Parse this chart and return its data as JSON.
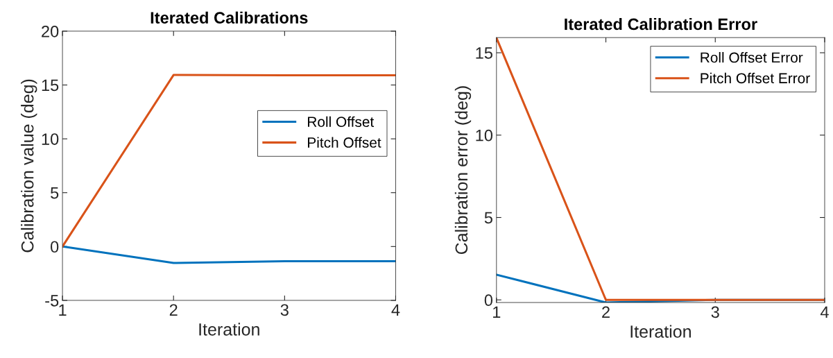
{
  "chart_data": [
    {
      "type": "line",
      "title": "Iterated Calibrations",
      "xlabel": "Iteration",
      "ylabel": "Calibration value (deg)",
      "x": [
        1,
        2,
        3,
        4
      ],
      "xlim": [
        1,
        4
      ],
      "xticks": [
        1,
        2,
        3,
        4
      ],
      "ylim": [
        -5,
        20
      ],
      "yticks": [
        -5,
        0,
        5,
        10,
        15,
        20
      ],
      "legend": "right",
      "grid": false,
      "series": [
        {
          "name": "Roll Offset",
          "color": "#0072bd",
          "values": [
            0,
            -1.53,
            -1.36,
            -1.36
          ]
        },
        {
          "name": "Pitch Offset",
          "color": "#d95319",
          "values": [
            0,
            15.93,
            15.9,
            15.9
          ]
        }
      ]
    },
    {
      "type": "line",
      "title": "Iterated Calibration Error",
      "xlabel": "Iteration",
      "ylabel": "Calibration error (deg)",
      "x": [
        1,
        2,
        3,
        4
      ],
      "xlim": [
        1,
        4
      ],
      "xticks": [
        1,
        2,
        3,
        4
      ],
      "ylim": [
        -0.16,
        15.92
      ],
      "yticks": [
        0,
        5,
        10,
        15
      ],
      "legend": "top right",
      "grid": false,
      "series": [
        {
          "name": "Roll Offset Error",
          "color": "#0072bd",
          "values": [
            1.53,
            -0.16,
            0,
            0
          ]
        },
        {
          "name": "Pitch Offset Error",
          "color": "#d95319",
          "values": [
            15.9,
            0,
            0,
            0
          ]
        }
      ]
    }
  ]
}
